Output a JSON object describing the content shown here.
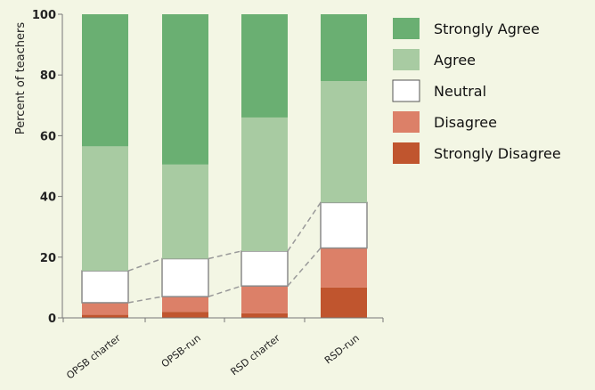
{
  "chart_data": {
    "type": "bar",
    "stacked": true,
    "ylabel": "Percent of teachers",
    "ylim": [
      0,
      100
    ],
    "yticks": [
      0,
      20,
      40,
      60,
      80,
      100
    ],
    "categories": [
      "OPSB charter",
      "OPSB-run",
      "RSD charter",
      "RSD-run"
    ],
    "series": [
      {
        "name": "Strongly Disagree",
        "color": "#c0552e",
        "values": [
          1,
          2,
          1.5,
          10
        ]
      },
      {
        "name": "Disagree",
        "color": "#dc8068",
        "values": [
          4,
          5,
          9,
          13
        ]
      },
      {
        "name": "Neutral",
        "color": "#ffffff",
        "values": [
          10.5,
          12.5,
          11.5,
          15
        ]
      },
      {
        "name": "Agree",
        "color": "#a8cba2",
        "values": [
          41,
          31,
          44,
          40
        ]
      },
      {
        "name": "Strongly Agree",
        "color": "#6aaf72",
        "values": [
          43.5,
          49.5,
          34,
          22
        ]
      }
    ],
    "legend_order": [
      "Strongly Agree",
      "Agree",
      "Neutral",
      "Disagree",
      "Strongly Disagree"
    ],
    "legend_position": "right",
    "connectors": "dashed lines linking the Neutral segments of adjacent bars"
  }
}
